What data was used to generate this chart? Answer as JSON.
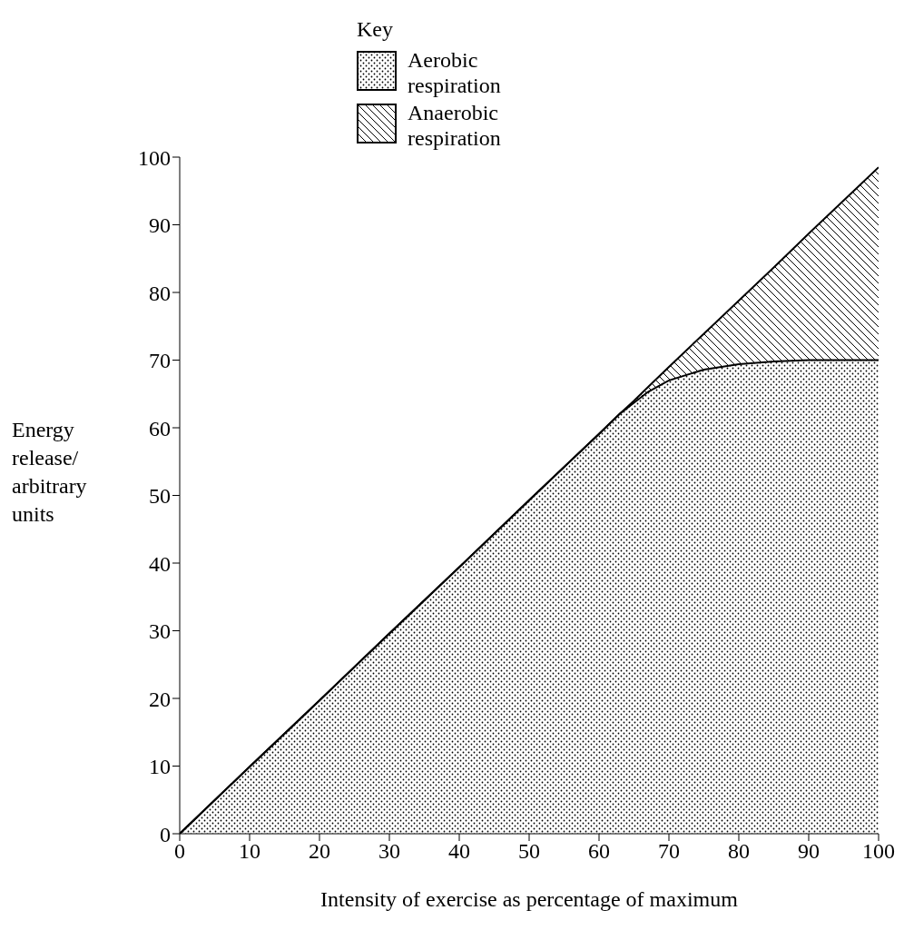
{
  "chart_data": {
    "type": "area",
    "xlabel": "Intensity of exercise as percentage of maximum",
    "ylabel": "Energy release/ arbitrary units",
    "legend_title": "Key",
    "legend": "top",
    "stacked": true,
    "grid": false,
    "x": [
      0,
      10,
      20,
      30,
      40,
      50,
      60,
      63,
      65,
      67,
      70,
      75,
      80,
      85,
      90,
      95,
      100
    ],
    "series": [
      {
        "name": "Aerobic respiration",
        "color": "#000000",
        "values": [
          0,
          9.9,
          19.7,
          29.6,
          39.4,
          49.3,
          59.1,
          62.1,
          63.7,
          65.3,
          67,
          68.6,
          69.4,
          69.8,
          70,
          70,
          70
        ]
      },
      {
        "name": "Anaerobic respiration",
        "color": "#000000",
        "values": [
          0,
          0,
          0,
          0,
          0,
          0,
          0,
          0,
          0.3,
          0.7,
          2,
          5.3,
          9.4,
          13.9,
          18.7,
          23.6,
          28.5
        ]
      }
    ],
    "xlim": [
      0,
      100
    ],
    "xticks": [
      0,
      10,
      20,
      30,
      40,
      50,
      60,
      70,
      80,
      90,
      100
    ],
    "ylim": [
      0,
      100
    ],
    "yticks": [
      0,
      10,
      20,
      30,
      40,
      50,
      60,
      70,
      80,
      90,
      100
    ]
  }
}
